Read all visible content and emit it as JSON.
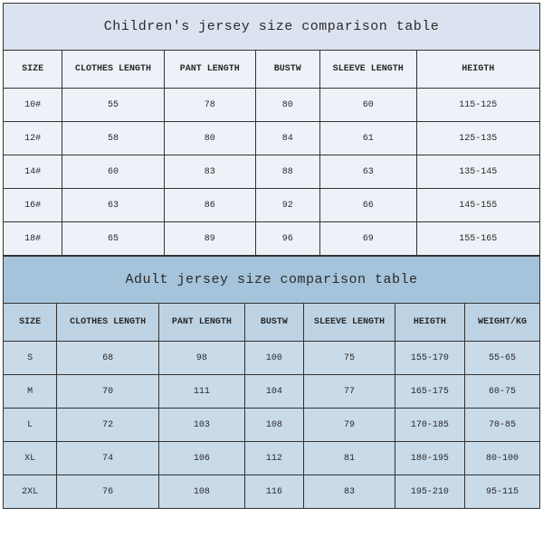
{
  "children": {
    "title": "Children's jersey size comparison table",
    "columns": [
      "SIZE",
      "CLOTHES LENGTH",
      "PANT LENGTH",
      "BUSTW",
      "SLEEVE LENGTH",
      "HEIGTH"
    ],
    "rows": [
      [
        "10#",
        "55",
        "78",
        "80",
        "60",
        "115-125"
      ],
      [
        "12#",
        "58",
        "80",
        "84",
        "61",
        "125-135"
      ],
      [
        "14#",
        "60",
        "83",
        "88",
        "63",
        "135-145"
      ],
      [
        "16#",
        "63",
        "86",
        "92",
        "66",
        "145-155"
      ],
      [
        "18#",
        "65",
        "89",
        "96",
        "69",
        "155-165"
      ]
    ],
    "colors": {
      "title_bg": "#dce3f0",
      "header_bg": "#eef1f8",
      "row_bg": "#eef1f8",
      "border": "#333333",
      "text": "#2a2a2a"
    },
    "title_fontsize": 15,
    "header_fontsize": 10,
    "cell_fontsize": 10
  },
  "adult": {
    "title": "Adult jersey size comparison table",
    "columns": [
      "SIZE",
      "CLOTHES LENGTH",
      "PANT LENGTH",
      "BUSTW",
      "SLEEVE LENGTH",
      "HEIGTH",
      "WEIGHT/KG"
    ],
    "rows": [
      [
        "S",
        "68",
        "98",
        "100",
        "75",
        "155-170",
        "55-65"
      ],
      [
        "M",
        "70",
        "111",
        "104",
        "77",
        "165-175",
        "60-75"
      ],
      [
        "L",
        "72",
        "103",
        "108",
        "79",
        "170-185",
        "70-85"
      ],
      [
        "XL",
        "74",
        "106",
        "112",
        "81",
        "180-195",
        "80-100"
      ],
      [
        "2XL",
        "76",
        "108",
        "116",
        "83",
        "195-210",
        "95-115"
      ]
    ],
    "colors": {
      "title_bg": "#a5c4db",
      "header_bg": "#bdd3e4",
      "row_bg": "#c9dae8",
      "border": "#333333",
      "text": "#2a2a2a"
    },
    "title_fontsize": 15,
    "header_fontsize": 10,
    "cell_fontsize": 10
  }
}
